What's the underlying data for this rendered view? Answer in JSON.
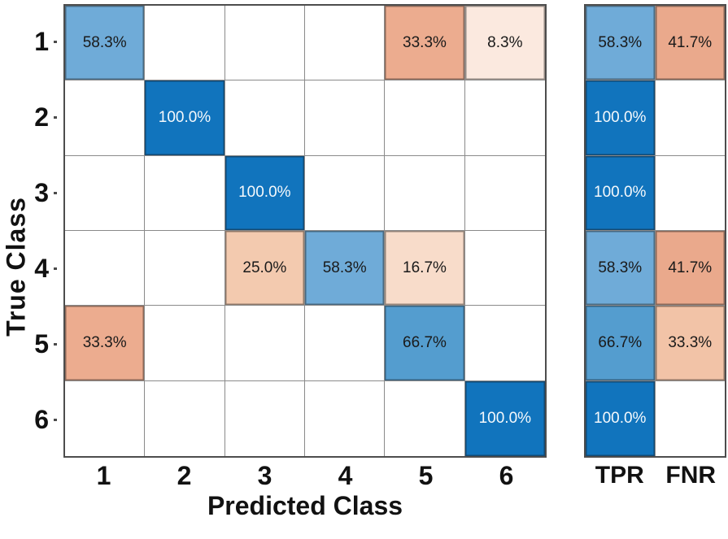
{
  "chart_data": {
    "type": "heatmap",
    "subtype": "confusion-matrix",
    "title": "",
    "xlabel": "Predicted Class",
    "ylabel": "True Class",
    "x_tick_labels": [
      "1",
      "2",
      "3",
      "4",
      "5",
      "6"
    ],
    "y_tick_labels": [
      "1",
      "2",
      "3",
      "4",
      "5",
      "6"
    ],
    "summary_column_labels": [
      "TPR",
      "FNR"
    ],
    "legend": "none",
    "grid_line_color": "#8a8a8a",
    "border_color": "#4d4d4d",
    "accent_colors": {
      "diagonal_full_blue": "#1174bd",
      "diagonal_mid_blue": "#6fabd8",
      "offdiagonal_orange": "#eaa98c"
    },
    "matrix_percent": [
      [
        58.3,
        null,
        null,
        null,
        33.3,
        8.3
      ],
      [
        null,
        100.0,
        null,
        null,
        null,
        null
      ],
      [
        null,
        null,
        100.0,
        null,
        null,
        null
      ],
      [
        null,
        null,
        25.0,
        58.3,
        16.7,
        null
      ],
      [
        33.3,
        null,
        null,
        null,
        66.7,
        null
      ],
      [
        null,
        null,
        null,
        null,
        null,
        100.0
      ]
    ],
    "row_summary_percent": {
      "TPR": [
        58.3,
        100.0,
        100.0,
        58.3,
        66.7,
        100.0
      ],
      "FNR": [
        41.7,
        null,
        null,
        41.7,
        33.3,
        null
      ]
    },
    "matrix_cells": [
      [
        {
          "label": "58.3%",
          "bg": "#6fabd8",
          "fg": "#1a1a1a"
        },
        null,
        null,
        null,
        {
          "label": "33.3%",
          "bg": "#ecac8f",
          "fg": "#1a1a1a"
        },
        {
          "label": "8.3%",
          "bg": "#fbe9df",
          "fg": "#1a1a1a"
        }
      ],
      [
        null,
        {
          "label": "100.0%",
          "bg": "#1174bd",
          "fg": "#f5f9fc"
        },
        null,
        null,
        null,
        null
      ],
      [
        null,
        null,
        {
          "label": "100.0%",
          "bg": "#1174bd",
          "fg": "#f5f9fc"
        },
        null,
        null,
        null
      ],
      [
        null,
        null,
        {
          "label": "25.0%",
          "bg": "#f3caaf",
          "fg": "#1a1a1a"
        },
        {
          "label": "58.3%",
          "bg": "#6fabd8",
          "fg": "#1a1a1a"
        },
        {
          "label": "16.7%",
          "bg": "#f8dcca",
          "fg": "#1a1a1a"
        },
        null
      ],
      [
        {
          "label": "33.3%",
          "bg": "#ecac8f",
          "fg": "#1a1a1a"
        },
        null,
        null,
        null,
        {
          "label": "66.7%",
          "bg": "#549dcf",
          "fg": "#1a1a1a"
        },
        null
      ],
      [
        null,
        null,
        null,
        null,
        null,
        {
          "label": "100.0%",
          "bg": "#1174bd",
          "fg": "#f5f9fc"
        }
      ]
    ],
    "row_summary_cells": [
      [
        {
          "label": "58.3%",
          "bg": "#6fabd8",
          "fg": "#1a1a1a"
        },
        {
          "label": "41.7%",
          "bg": "#eaa98c",
          "fg": "#1a1a1a"
        }
      ],
      [
        {
          "label": "100.0%",
          "bg": "#1174bd",
          "fg": "#f5f9fc"
        },
        null
      ],
      [
        {
          "label": "100.0%",
          "bg": "#1174bd",
          "fg": "#f5f9fc"
        },
        null
      ],
      [
        {
          "label": "58.3%",
          "bg": "#6fabd8",
          "fg": "#1a1a1a"
        },
        {
          "label": "41.7%",
          "bg": "#eaa98c",
          "fg": "#1a1a1a"
        }
      ],
      [
        {
          "label": "66.7%",
          "bg": "#549dcf",
          "fg": "#1a1a1a"
        },
        {
          "label": "33.3%",
          "bg": "#f2c3a7",
          "fg": "#1a1a1a"
        }
      ],
      [
        {
          "label": "100.0%",
          "bg": "#1174bd",
          "fg": "#f5f9fc"
        },
        null
      ]
    ]
  }
}
